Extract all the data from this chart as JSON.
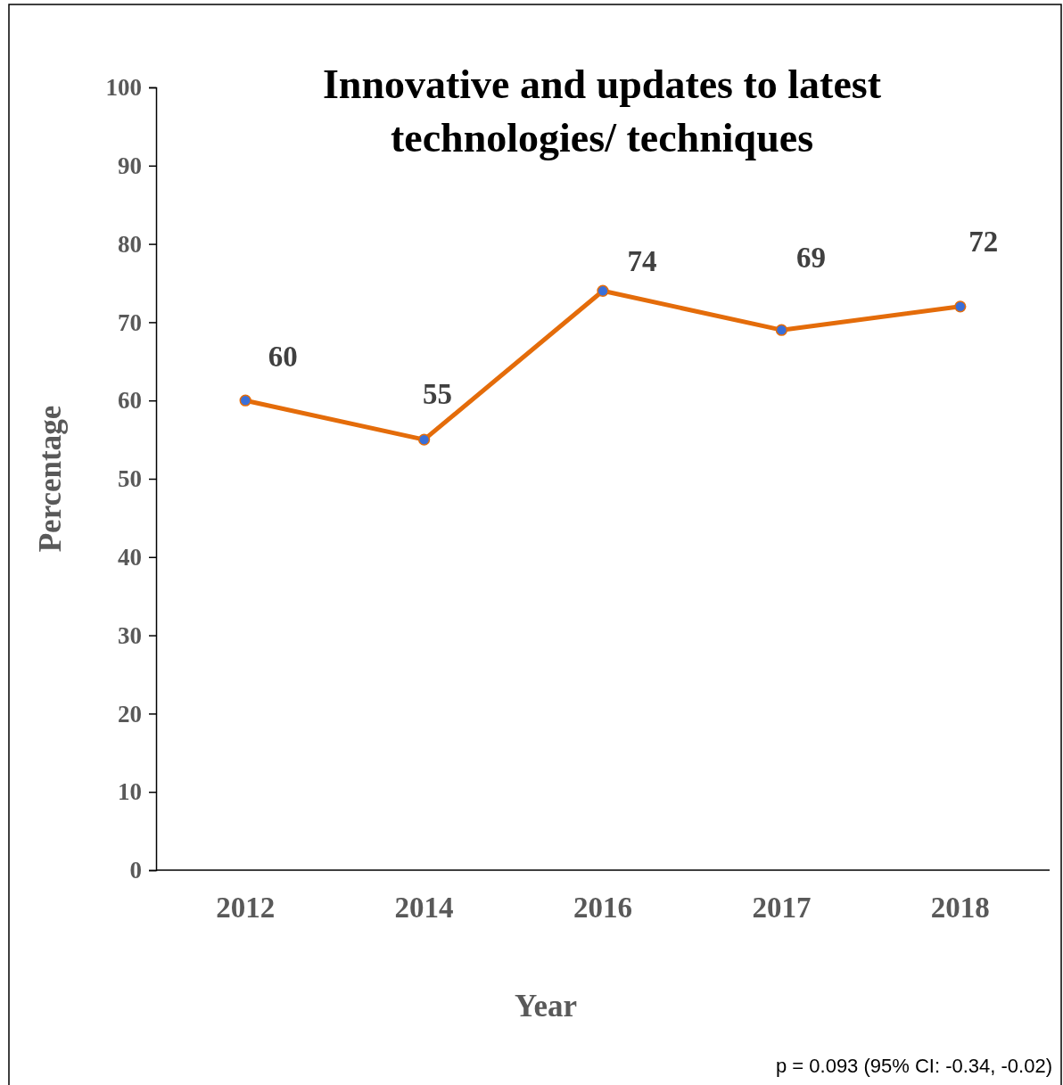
{
  "chart_data": {
    "type": "line",
    "title": "Innovative and updates to latest technologies/ techniques",
    "xlabel": "Year",
    "ylabel": "Percentage",
    "categories": [
      "2012",
      "2014",
      "2016",
      "2017",
      "2018"
    ],
    "series": [
      {
        "color": "#e46c0a",
        "values": [
          60,
          55,
          74,
          69,
          72
        ]
      }
    ],
    "ylim": [
      0,
      100
    ],
    "yticks": [
      0,
      10,
      20,
      30,
      40,
      50,
      60,
      70,
      80,
      90,
      100
    ],
    "marker": "circle",
    "data_labels": true,
    "grid": false,
    "annotations": [
      "p = 0.093 (95% CI:  -0.34, -0.02)"
    ]
  }
}
